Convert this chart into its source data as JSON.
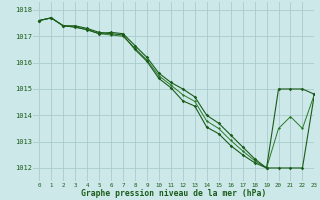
{
  "title": "Graphe pression niveau de la mer (hPa)",
  "bg_color": "#cce8e8",
  "grid_color": "#aacccc",
  "line_color_dark": "#1a5c1a",
  "line_color_mid": "#2a7a2a",
  "xlim": [
    -0.5,
    23
  ],
  "ylim": [
    1011.5,
    1018.3
  ],
  "yticks": [
    1012,
    1013,
    1014,
    1015,
    1016,
    1017,
    1018
  ],
  "xticks": [
    0,
    1,
    2,
    3,
    4,
    5,
    6,
    7,
    8,
    9,
    10,
    11,
    12,
    13,
    14,
    15,
    16,
    17,
    18,
    19,
    20,
    21,
    22,
    23
  ],
  "figsize": [
    3.2,
    2.0
  ],
  "dpi": 100,
  "series1_x": [
    0,
    1,
    2,
    3,
    4,
    5,
    6,
    7,
    8,
    9,
    10,
    11,
    12,
    13,
    14,
    15,
    16,
    17,
    18,
    19,
    20,
    21,
    22,
    23
  ],
  "series1_y": [
    1017.6,
    1017.7,
    1017.4,
    1017.4,
    1017.3,
    1017.15,
    1017.1,
    1017.05,
    1016.5,
    1016.05,
    1015.4,
    1015.05,
    1014.55,
    1014.35,
    1013.55,
    1013.3,
    1012.85,
    1012.5,
    1012.2,
    1012.0,
    1012.0,
    1012.0,
    1012.0,
    1014.8
  ],
  "series2_x": [
    0,
    1,
    2,
    3,
    4,
    5,
    6,
    7,
    8,
    9,
    10,
    11,
    12,
    13,
    14,
    15,
    16,
    17,
    18,
    19,
    20,
    21,
    22,
    23
  ],
  "series2_y": [
    1017.6,
    1017.7,
    1017.4,
    1017.35,
    1017.25,
    1017.1,
    1017.15,
    1017.1,
    1016.65,
    1016.2,
    1015.6,
    1015.25,
    1015.0,
    1014.7,
    1014.0,
    1013.7,
    1013.25,
    1012.8,
    1012.35,
    1012.0,
    1015.0,
    1015.0,
    1015.0,
    1014.8
  ],
  "series3_x": [
    0,
    1,
    2,
    3,
    4,
    5,
    6,
    7,
    8,
    9,
    10,
    11,
    12,
    13,
    14,
    15,
    16,
    17,
    18,
    19,
    20,
    21,
    22,
    23
  ],
  "series3_y": [
    1017.6,
    1017.7,
    1017.4,
    1017.35,
    1017.25,
    1017.1,
    1017.05,
    1017.0,
    1016.55,
    1016.1,
    1015.5,
    1015.15,
    1014.78,
    1014.53,
    1013.78,
    1013.5,
    1013.05,
    1012.65,
    1012.28,
    1012.0,
    1013.5,
    1013.95,
    1013.5,
    1014.8
  ]
}
